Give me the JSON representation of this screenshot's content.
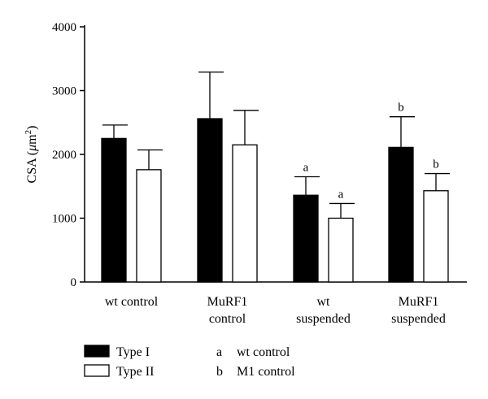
{
  "chart_data": {
    "type": "bar",
    "ylabel_prefix": "CSA (",
    "ylabel_mu": "μ",
    "ylabel_unit": "m",
    "ylabel_exp": "2",
    "ylabel_suffix": ")",
    "ylim": [
      0,
      4000
    ],
    "yticks": [
      "0",
      "1000",
      "2000",
      "3000",
      "4000"
    ],
    "ytick_values": [
      0,
      1000,
      2000,
      3000,
      4000
    ],
    "categories": [
      [
        "wt control"
      ],
      [
        "MuRF1",
        "control"
      ],
      [
        "wt",
        "suspended"
      ],
      [
        "MuRF1",
        "suspended"
      ]
    ],
    "series": [
      {
        "name": "Type I",
        "fill": "#000000",
        "values": [
          2250,
          2560,
          1360,
          2110
        ],
        "errors": [
          210,
          730,
          290,
          480
        ],
        "sig": [
          "",
          "",
          "a",
          "b"
        ]
      },
      {
        "name": "Type II",
        "fill": "#ffffff",
        "values": [
          1760,
          2150,
          1000,
          1430
        ],
        "errors": [
          310,
          540,
          230,
          270
        ],
        "sig": [
          "",
          "",
          "a",
          "b"
        ]
      }
    ],
    "footnotes": [
      {
        "key": "a",
        "text": "wt control"
      },
      {
        "key": "b",
        "text": "M1 control"
      }
    ],
    "grid": false,
    "legend_position": "bottom-left"
  }
}
